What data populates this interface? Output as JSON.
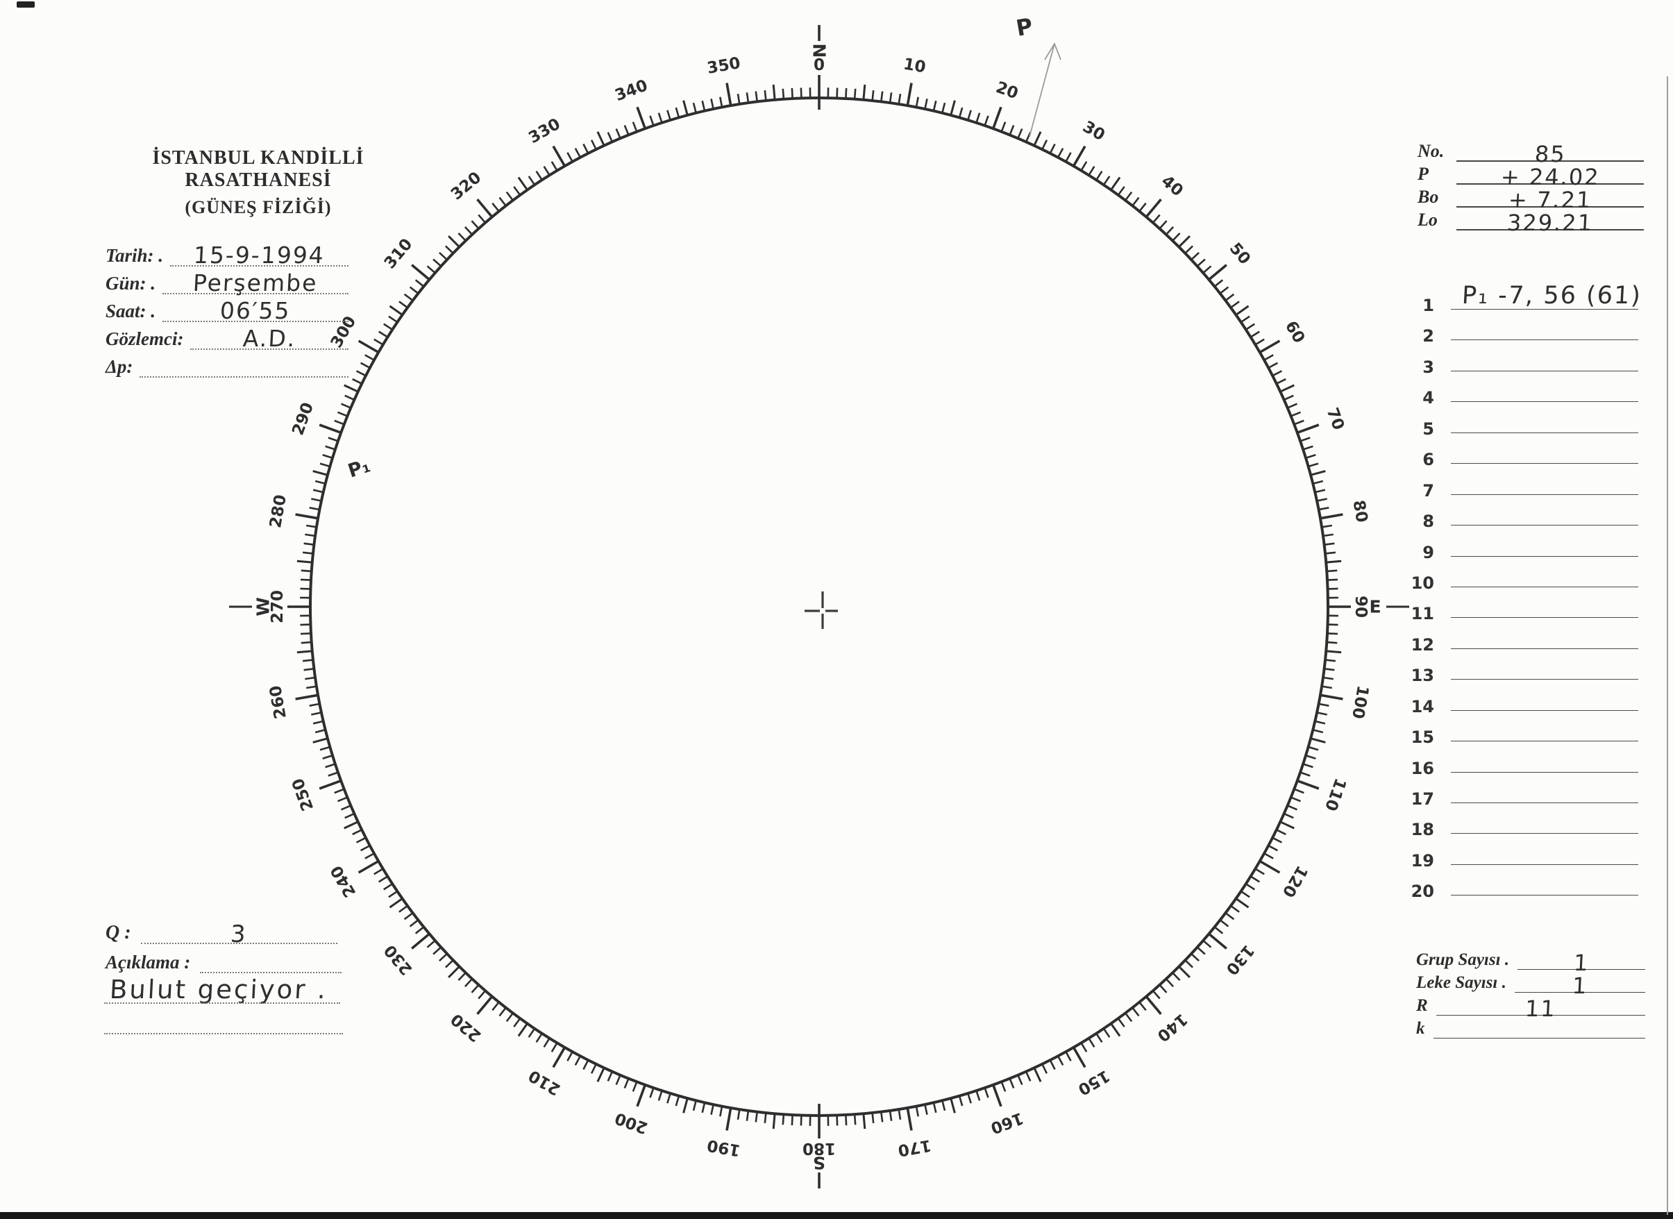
{
  "header": {
    "title_line1": "İSTANBUL KANDİLLİ RASATHANESİ",
    "title_line2": "(GÜNEŞ FİZİĞİ)"
  },
  "observation_form": {
    "fields": [
      {
        "id": "tarih",
        "label": "Tarih: .",
        "value": "15-9-1994"
      },
      {
        "id": "gun",
        "label": "Gün: .",
        "value": "Perşembe"
      },
      {
        "id": "saat",
        "label": "Saat: .",
        "value": "06′55"
      },
      {
        "id": "gozlemci",
        "label": "Gözlemci:",
        "value": "A.D."
      },
      {
        "id": "delta-p",
        "label": "Δp:",
        "value": ""
      }
    ]
  },
  "ephemeris": {
    "rows": [
      {
        "id": "no",
        "label": "No.",
        "value": "85"
      },
      {
        "id": "p",
        "label": "P",
        "value": "+ 24.02"
      },
      {
        "id": "bo",
        "label": "Bo",
        "value": "+ 7.21"
      },
      {
        "id": "lo",
        "label": "Lo",
        "value": "329.21"
      }
    ]
  },
  "measurement_list": {
    "rows": [
      {
        "num": "1",
        "value": "P₁  -7, 56  (61)"
      },
      {
        "num": "2",
        "value": ""
      },
      {
        "num": "3",
        "value": ""
      },
      {
        "num": "4",
        "value": ""
      },
      {
        "num": "5",
        "value": ""
      },
      {
        "num": "6",
        "value": ""
      },
      {
        "num": "7",
        "value": ""
      },
      {
        "num": "8",
        "value": ""
      },
      {
        "num": "9",
        "value": ""
      },
      {
        "num": "10",
        "value": ""
      },
      {
        "num": "11",
        "value": ""
      },
      {
        "num": "12",
        "value": ""
      },
      {
        "num": "13",
        "value": ""
      },
      {
        "num": "14",
        "value": ""
      },
      {
        "num": "15",
        "value": ""
      },
      {
        "num": "16",
        "value": ""
      },
      {
        "num": "17",
        "value": ""
      },
      {
        "num": "18",
        "value": ""
      },
      {
        "num": "19",
        "value": ""
      },
      {
        "num": "20",
        "value": ""
      }
    ]
  },
  "summary": {
    "rows": [
      {
        "id": "grup-sayisi",
        "label": "Grup Sayısı .",
        "value": "1"
      },
      {
        "id": "leke-sayisi",
        "label": "Leke Sayısı .",
        "value": "1"
      },
      {
        "id": "r",
        "label": "R",
        "value": "11"
      },
      {
        "id": "k",
        "label": "k",
        "value": ""
      }
    ]
  },
  "quality": {
    "label": "Q :",
    "value": "3"
  },
  "remarks": {
    "label": "Açıklama :",
    "note": "Bulut  geçiyor ."
  },
  "dial": {
    "degrees_max": 360,
    "minor_step_deg": 1,
    "medium_step_deg": 5,
    "major_step_deg": 10,
    "tick_labels": [
      10,
      20,
      30,
      40,
      50,
      60,
      70,
      80,
      100,
      110,
      120,
      130,
      140,
      150,
      160,
      170,
      190,
      200,
      210,
      220,
      230,
      240,
      250,
      260,
      280,
      290,
      300,
      310,
      320,
      330,
      340,
      350
    ],
    "cardinals": [
      {
        "angle": 0,
        "letter": "N",
        "number": "0"
      },
      {
        "angle": 90,
        "letter": "E",
        "number": "90"
      },
      {
        "angle": 180,
        "letter": "S",
        "number": "180"
      },
      {
        "angle": 270,
        "letter": "W",
        "number": "270"
      }
    ],
    "annotation_arrow": {
      "label": "P",
      "angle_deg": 24
    },
    "faint_pencil_mark": "P₁"
  },
  "colors": {
    "ink": "#2e2e2e",
    "pencil": "#9b9b9b",
    "faint_pencil": "#c9c9c9",
    "paper": "#fcfcfa"
  }
}
